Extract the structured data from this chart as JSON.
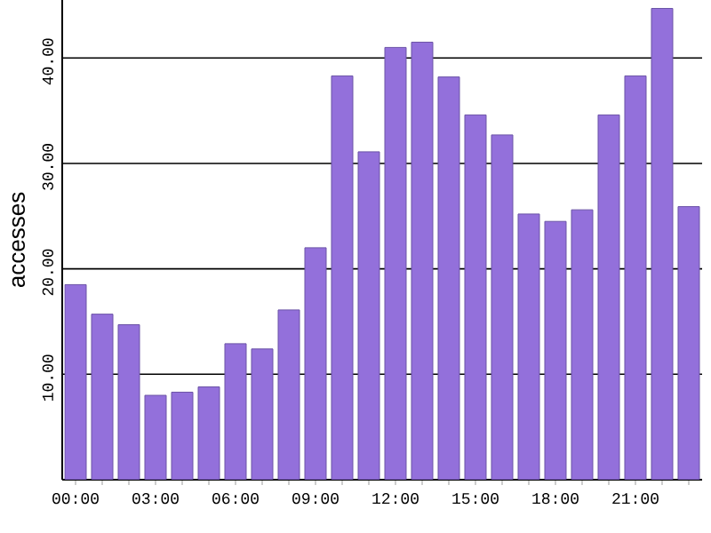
{
  "chart_data": {
    "type": "bar",
    "ylabel": "accesses",
    "categories": [
      "00:00",
      null,
      null,
      "03:00",
      null,
      null,
      "06:00",
      null,
      null,
      "09:00",
      null,
      null,
      "12:00",
      null,
      null,
      "15:00",
      null,
      null,
      "18:00",
      null,
      null,
      "21:00",
      null,
      null
    ],
    "values": [
      18.5,
      15.7,
      14.7,
      8.0,
      8.3,
      8.8,
      12.9,
      12.4,
      16.1,
      22.0,
      38.3,
      31.1,
      41.0,
      41.5,
      38.2,
      34.6,
      32.7,
      25.2,
      24.5,
      25.6,
      34.6,
      38.3,
      44.7,
      25.9
    ],
    "color": "#9370db",
    "ylim": [
      0,
      45.5
    ],
    "yticks": [
      {
        "value": 10,
        "label": "10.00"
      },
      {
        "value": 20,
        "label": "20.00"
      },
      {
        "value": 30,
        "label": "30.00"
      },
      {
        "value": 40,
        "label": "40.00"
      }
    ],
    "grid": "y"
  }
}
